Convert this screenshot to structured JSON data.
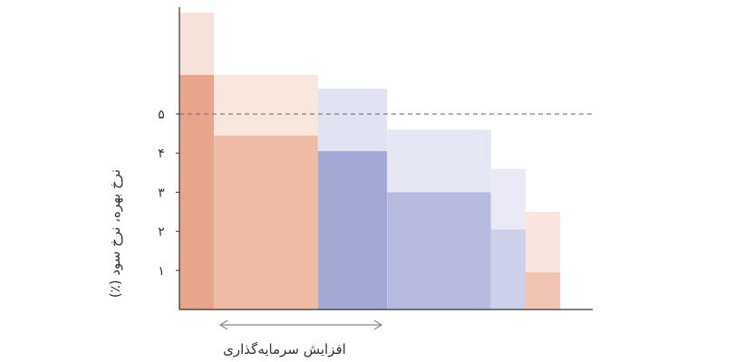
{
  "chart_data": {
    "type": "bar",
    "ylabel": "نرخ بهره، نرخ سود (٪)",
    "ylim": [
      0,
      7.2
    ],
    "yticks": [
      {
        "value": 1,
        "label": "۱"
      },
      {
        "value": 2,
        "label": "۲"
      },
      {
        "value": 3,
        "label": "۳"
      },
      {
        "value": 4,
        "label": "۴"
      },
      {
        "value": 5,
        "label": "۵"
      }
    ],
    "reference_line": {
      "value": 5,
      "style": "dashed"
    },
    "annotation": {
      "text": "افزایش سرمایه‌گذاری",
      "arrow": "both-ends"
    },
    "bars": [
      {
        "width": 1.0,
        "value": 6.0,
        "range_top": 7.6,
        "color": "#e9a58b",
        "light_color": "#f7e2d9"
      },
      {
        "width": 3.0,
        "value": 4.45,
        "range_top": 6.0,
        "color": "#efbba4",
        "light_color": "#f9e6dc"
      },
      {
        "width": 2.0,
        "value": 4.05,
        "range_top": 5.65,
        "color": "#a3a8d6",
        "light_color": "#e1e3f3"
      },
      {
        "width": 3.0,
        "value": 3.0,
        "range_top": 4.6,
        "color": "#b8bbe0",
        "light_color": "#e6e7f4"
      },
      {
        "width": 1.0,
        "value": 2.05,
        "range_top": 3.6,
        "color": "#cdd0ea",
        "light_color": "#e9eaf5"
      },
      {
        "width": 1.0,
        "value": 0.95,
        "range_top": 2.5,
        "color": "#f1c3b3",
        "light_color": "#f9e5dd"
      }
    ],
    "grid": false,
    "legend": "none",
    "colors": {
      "axis": "#333333",
      "reference_line": "#666666",
      "arrow": "#888888"
    }
  }
}
